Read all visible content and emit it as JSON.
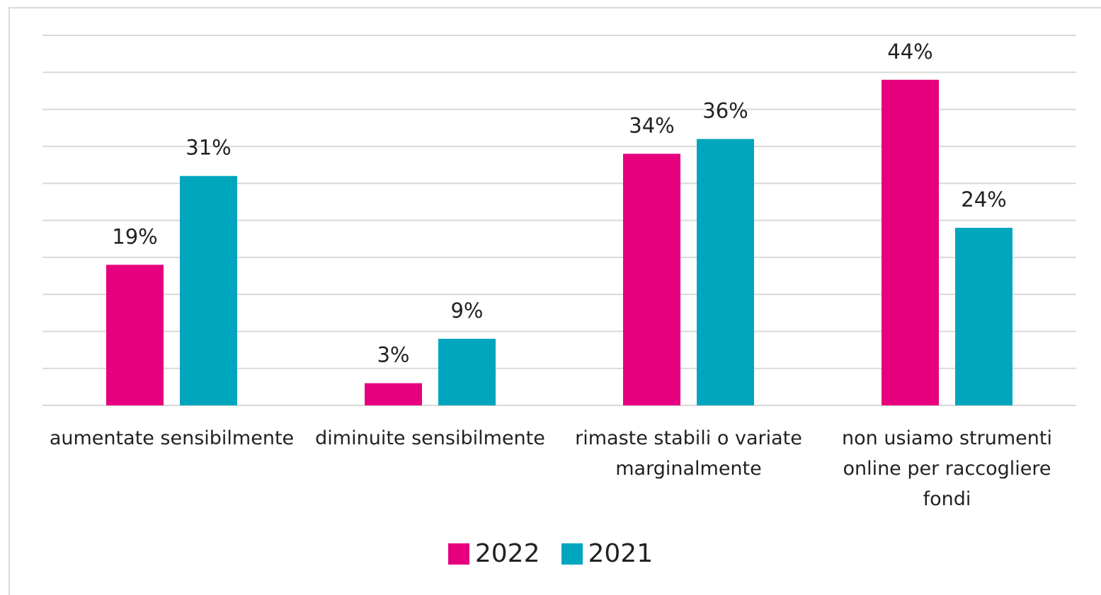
{
  "chart_data": {
    "type": "bar",
    "categories": [
      "aumentate sensibilmente",
      "diminuite sensibilmente",
      "rimaste stabili o variate marginalmente",
      "non usiamo strumenti online per raccogliere fondi"
    ],
    "series": [
      {
        "name": "2022",
        "color": "#e6007e",
        "values": [
          19,
          3,
          34,
          44
        ],
        "value_labels": [
          "19%",
          "3%",
          "34%",
          "44%"
        ]
      },
      {
        "name": "2021",
        "color": "#00a6bd",
        "values": [
          31,
          9,
          36,
          24
        ],
        "value_labels": [
          "31%",
          "9%",
          "36%",
          "24%"
        ]
      }
    ],
    "ylim": [
      0,
      50
    ],
    "yticks": [
      0,
      5,
      10,
      15,
      20,
      25,
      30,
      35,
      40,
      45,
      50
    ],
    "grid": true,
    "legend": "bottom"
  }
}
